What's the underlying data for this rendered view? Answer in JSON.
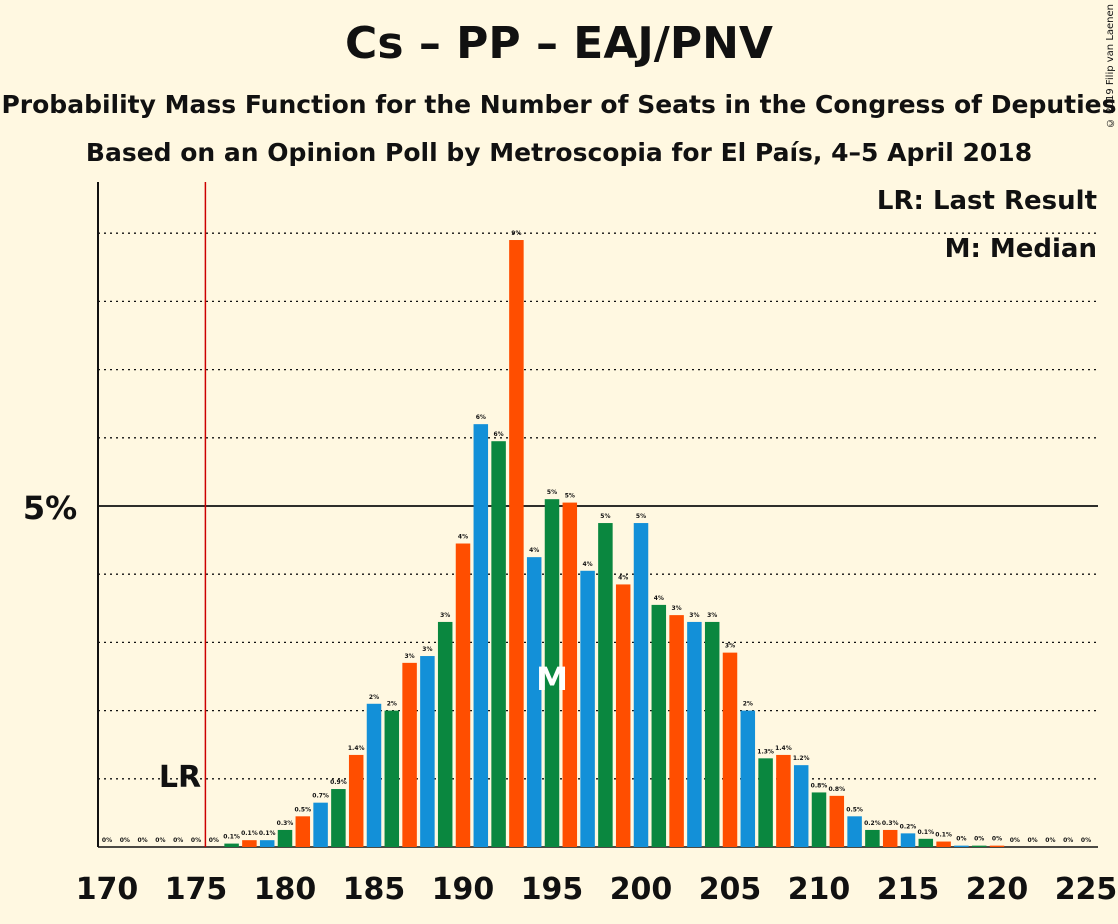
{
  "title": "Cs – PP – EAJ/PNV",
  "subtitle": "Probability Mass Function for the Number of Seats in the Congress of Deputies",
  "subtitle2": "Based on an Opinion Poll by Metroscopia for El País, 4–5 April 2018",
  "copyright": "© 2019 Filip van Laenen",
  "legend": {
    "lr": "LR: Last Result",
    "m": "M: Median"
  },
  "lr_marker": "LR",
  "median_marker": "M",
  "y_tick_label": "5%",
  "colors": {
    "blue": "#1390D8",
    "green": "#0A873F",
    "orange": "#FF4E00",
    "lr_line": "#CC0000",
    "background": "#FFF8E1"
  },
  "chart_data": {
    "type": "bar",
    "x": [
      170,
      171,
      172,
      173,
      174,
      175,
      176,
      177,
      178,
      179,
      180,
      181,
      182,
      183,
      184,
      185,
      186,
      187,
      188,
      189,
      190,
      191,
      192,
      193,
      194,
      195,
      196,
      197,
      198,
      199,
      200,
      201,
      202,
      203,
      204,
      205,
      206,
      207,
      208,
      209,
      210,
      211,
      212,
      213,
      214,
      215,
      216,
      217,
      218,
      219,
      220,
      221,
      222,
      223,
      224,
      225
    ],
    "values": [
      0,
      0,
      0,
      0,
      0,
      0,
      0,
      0.05,
      0.1,
      0.1,
      0.25,
      0.45,
      0.65,
      0.85,
      1.35,
      2.1,
      2.0,
      2.7,
      2.8,
      3.3,
      4.45,
      6.2,
      5.95,
      8.9,
      4.25,
      5.1,
      5.05,
      4.05,
      4.75,
      3.85,
      4.75,
      3.55,
      3.4,
      3.3,
      3.3,
      2.85,
      2.0,
      1.3,
      1.35,
      1.2,
      0.8,
      0.75,
      0.45,
      0.25,
      0.25,
      0.2,
      0.12,
      0.08,
      0.02,
      0.02,
      0.02,
      0.0,
      0.0,
      0.0,
      0.0,
      0.0
    ],
    "data_labels": [
      "0%",
      "0%",
      "0%",
      "0%",
      "0%",
      "0%",
      "0%",
      "0.1%",
      "0.1%",
      "0.1%",
      "0.3%",
      "0.5%",
      "0.7%",
      "0.9%",
      "1.4%",
      "2%",
      "2%",
      "3%",
      "3%",
      "3%",
      "4%",
      "6%",
      "6%",
      "9%",
      "4%",
      "5%",
      "5%",
      "4%",
      "5%",
      "4%",
      "5%",
      "4%",
      "3%",
      "3%",
      "3%",
      "3%",
      "2%",
      "1.3%",
      "1.4%",
      "1.2%",
      "0.8%",
      "0.8%",
      "0.5%",
      "0.2%",
      "0.3%",
      "0.2%",
      "0.1%",
      "0.1%",
      "0%",
      "0%",
      "0%",
      "0%",
      "0%",
      "0%",
      "0%",
      "0%"
    ],
    "x_tick_labels": [
      "170",
      "175",
      "180",
      "185",
      "190",
      "195",
      "200",
      "205",
      "210",
      "215",
      "220",
      "225"
    ],
    "x_ticks": [
      170,
      175,
      180,
      185,
      190,
      195,
      200,
      205,
      210,
      215,
      220,
      225
    ],
    "last_result": 176,
    "median": 195,
    "ylim": [
      0,
      9.8
    ],
    "y_gridlines": [
      1,
      2,
      3,
      4,
      5,
      6,
      7,
      8,
      9
    ],
    "y_major": 5,
    "color_cycle": [
      "blue",
      "green",
      "orange"
    ],
    "legend_placement": "top-right"
  }
}
